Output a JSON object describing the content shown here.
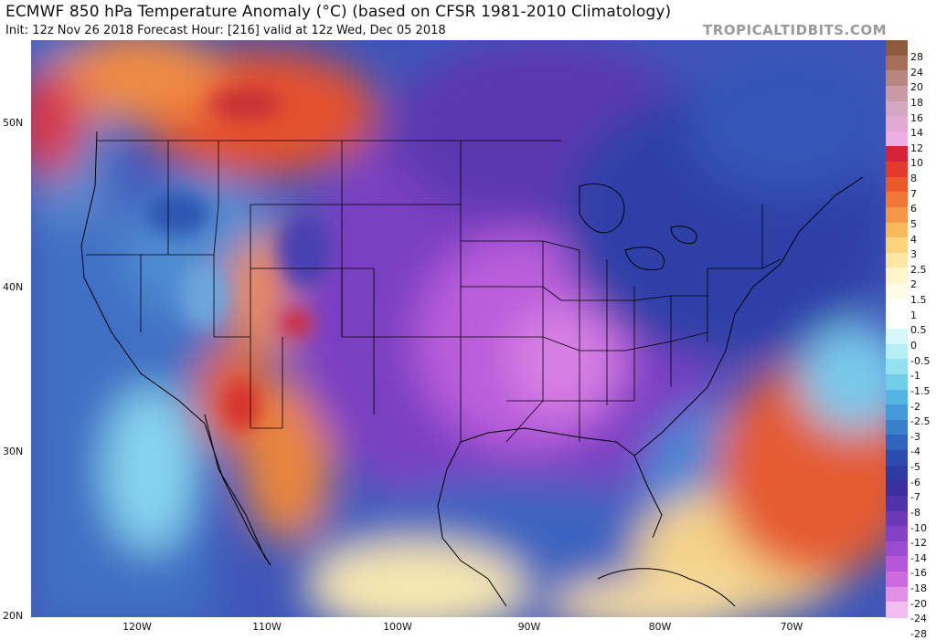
{
  "header": {
    "title": "ECMWF 850 hPa Temperature Anomaly (°C) (based on CFSR 1981-2010 Climatology)",
    "subtitle": "Init: 12z Nov 26 2018   Forecast Hour: [216]   valid at 12z Wed, Dec 05 2018",
    "brand": "TROPICALTIDBITS.COM"
  },
  "map": {
    "lat_labels": [
      "50N",
      "40N",
      "30N",
      "20N"
    ],
    "lon_labels": [
      "120W",
      "110W",
      "100W",
      "90W",
      "80W",
      "70W"
    ]
  },
  "legend": {
    "values": [
      "28",
      "24",
      "20",
      "18",
      "16",
      "14",
      "12",
      "10",
      "8",
      "7",
      "6",
      "5",
      "4",
      "3",
      "2.5",
      "2",
      "1.5",
      "1",
      "0.5",
      "0",
      "-0.5",
      "-1",
      "-1.5",
      "-2",
      "-2.5",
      "-3",
      "-4",
      "-5",
      "-6",
      "-7",
      "-8",
      "-10",
      "-12",
      "-14",
      "-16",
      "-18",
      "-20",
      "-24",
      "-28"
    ],
    "colors": [
      "#8e5a3e",
      "#a76e5c",
      "#b9857f",
      "#c79aa4",
      "#d5a6c0",
      "#e3a9d3",
      "#eeaee3",
      "#d4223a",
      "#e03b2d",
      "#e85a2b",
      "#ef7838",
      "#f39749",
      "#f8b85c",
      "#fbd27e",
      "#fde6a4",
      "#fef5cc",
      "#fffbe6",
      "#ffffff",
      "#ffffff",
      "#d8f7fb",
      "#b6eef6",
      "#93e0f1",
      "#72cdeb",
      "#56b4e3",
      "#4699d8",
      "#3a7fca",
      "#3164bd",
      "#2b4bae",
      "#2d3aa0",
      "#3b2f9e",
      "#5033aa",
      "#6a38b8",
      "#8241c6",
      "#9a4cd0",
      "#b458da",
      "#cd6ae0",
      "#e290e6",
      "#f1bcef"
    ]
  }
}
